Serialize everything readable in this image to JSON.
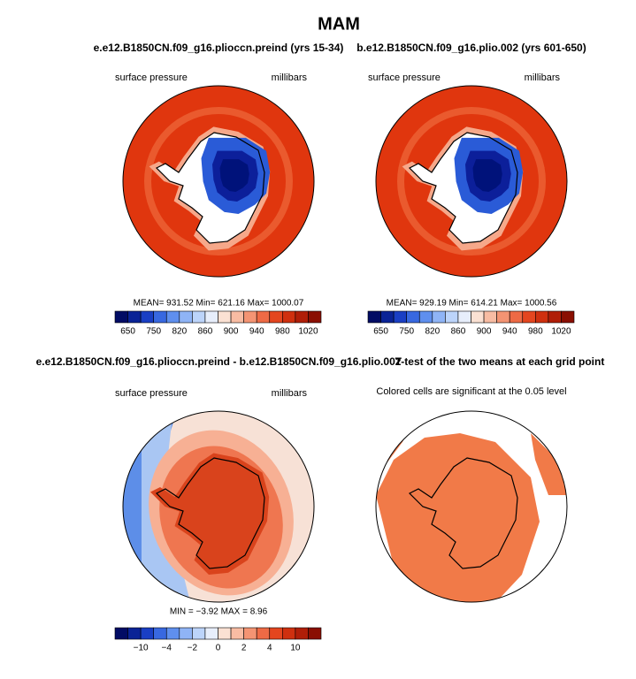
{
  "title": "MAM",
  "panels": [
    {
      "title": "e.e12.B1850CN.f09_g16.plioccn.preind (yrs 15-34)",
      "left_label": "surface pressure",
      "right_label": "millibars",
      "stats": "MEAN= 931.52   Min= 621.16   Max= 1000.07",
      "colorbar_labels": [
        "650",
        "750",
        "820",
        "860",
        "900",
        "940",
        "980",
        "1020"
      ]
    },
    {
      "title": "b.e12.B1850CN.f09_g16.plio.002 (yrs 601-650)",
      "left_label": "surface pressure",
      "right_label": "millibars",
      "stats": "MEAN= 929.19   Min= 614.21   Max= 1000.56",
      "colorbar_labels": [
        "650",
        "750",
        "820",
        "860",
        "900",
        "940",
        "980",
        "1020"
      ]
    },
    {
      "title": "e.e12.B1850CN.f09_g16.plioccn.preind - b.e12.B1850CN.f09_g16.plio.002",
      "left_label": "surface pressure",
      "right_label": "millibars",
      "stats": "MIN =  −3.92   MAX =   8.96",
      "colorbar_labels": [
        "−10",
        "−4",
        "−2",
        "0",
        "2",
        "4",
        "10"
      ]
    },
    {
      "title": "T-test of the two means at each grid point",
      "note": "Colored cells are significant at the 0.05 level"
    }
  ]
}
